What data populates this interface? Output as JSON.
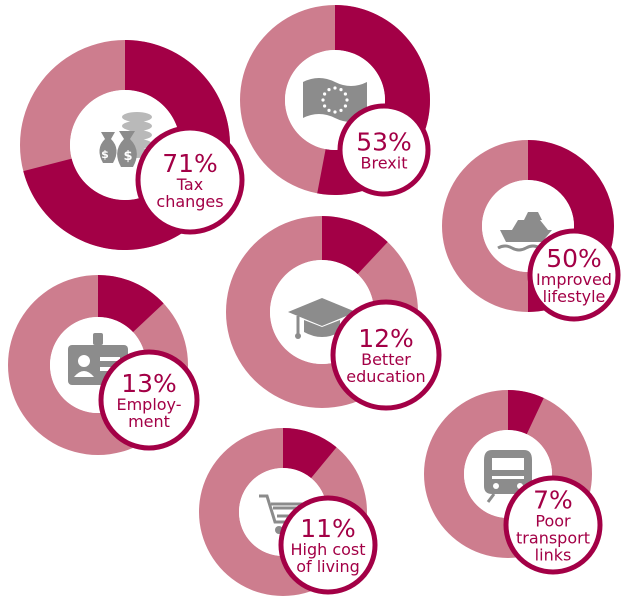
{
  "colors": {
    "accent": "#a30046",
    "remainder": "#cd7d8e",
    "badge_fill": "#ffffff",
    "icon": "#8c8c8c"
  },
  "chart_data": {
    "type": "pie",
    "variant": "donut-infographic",
    "title": "",
    "items": [
      {
        "label_lines": [
          "Tax",
          "changes"
        ],
        "value": 71,
        "value_text": "71%",
        "icon": "money-bags-coins-icon"
      },
      {
        "label_lines": [
          "Brexit"
        ],
        "value": 53,
        "value_text": "53%",
        "icon": "eu-flag-icon"
      },
      {
        "label_lines": [
          "Improved",
          "lifestyle"
        ],
        "value": 50,
        "value_text": "50%",
        "icon": "yacht-icon"
      },
      {
        "label_lines": [
          "Better",
          "education"
        ],
        "value": 12,
        "value_text": "12%",
        "icon": "graduation-cap-icon"
      },
      {
        "label_lines": [
          "Employ-",
          "ment"
        ],
        "value": 13,
        "value_text": "13%",
        "icon": "id-badge-icon"
      },
      {
        "label_lines": [
          "High cost",
          "of living"
        ],
        "value": 11,
        "value_text": "11%",
        "icon": "shopping-cart-icon"
      },
      {
        "label_lines": [
          "Poor",
          "transport",
          "links"
        ],
        "value": 7,
        "value_text": "7%",
        "icon": "train-icon"
      }
    ]
  }
}
